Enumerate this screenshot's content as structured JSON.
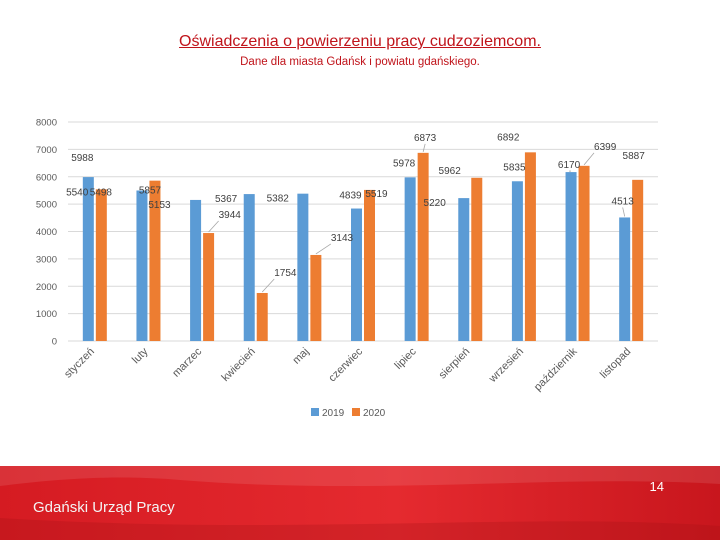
{
  "title": "Oświadczenia o powierzeniu pracy  cudzoziemcom.",
  "subtitle": "Dane dla miasta Gdańsk i powiatu gdańskiego.",
  "footer": {
    "logo_text": "Gdański Urząd Pracy",
    "page_number": "14"
  },
  "colors": {
    "series_2019": "#5b9bd5",
    "series_2020": "#ed7d31",
    "footer": "#d51b22",
    "title": "#c0141b"
  },
  "chart_data": {
    "type": "bar",
    "title": "",
    "xlabel": "",
    "ylabel": "",
    "ylim": [
      0,
      8000
    ],
    "yticks": [
      0,
      1000,
      2000,
      3000,
      4000,
      5000,
      6000,
      7000,
      8000
    ],
    "ytick_labels": [
      "0",
      "1000",
      "2000",
      "3000",
      "4000",
      "5000",
      "6000",
      "7000",
      "8000"
    ],
    "grid": true,
    "legend_position": "bottom",
    "categories": [
      "styczeń",
      "luty",
      "marzec",
      "kwiecień",
      "maj",
      "czerwiec",
      "lipiec",
      "sierpień",
      "wrzesień",
      "październik",
      "listopad"
    ],
    "series": [
      {
        "name": "2019",
        "values": [
          5988,
          5498,
          5153,
          5367,
          5382,
          4839,
          5978,
          5220,
          5835,
          6170,
          4513
        ],
        "labels": [
          "5988",
          "5498",
          "5153",
          "5367",
          "5382",
          "4839",
          "5978",
          "5220",
          "5835",
          "6170",
          "4513"
        ]
      },
      {
        "name": "2020",
        "values": [
          5540,
          5857,
          3944,
          1754,
          3143,
          5519,
          6873,
          5962,
          6892,
          6399,
          5887
        ],
        "labels": [
          "5540",
          "5857",
          "3944",
          "1754",
          "3143",
          "5519",
          "6873",
          "5962",
          "6892",
          "6399",
          "5887"
        ]
      }
    ]
  }
}
